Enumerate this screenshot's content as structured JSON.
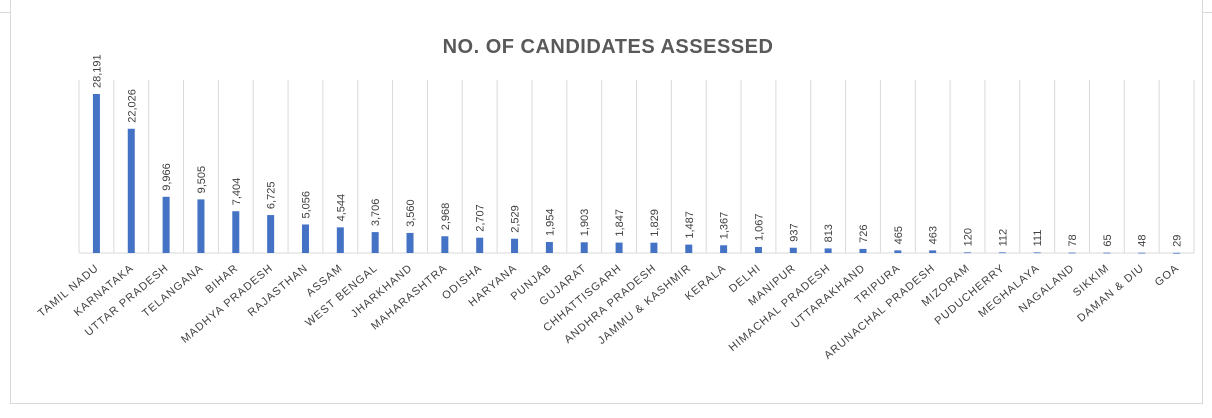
{
  "chart_data": {
    "type": "bar",
    "title": "NO. OF CANDIDATES ASSESSED",
    "categories": [
      "TAMIL NADU",
      "KARNATAKA",
      "UTTAR PRADESH",
      "TELANGANA",
      "BIHAR",
      "MADHYA PRADESH",
      "RAJASTHAN",
      "ASSAM",
      "WEST BENGAL",
      "JHARKHAND",
      "MAHARASHTRA",
      "ODISHA",
      "HARYANA",
      "PUNJAB",
      "GUJARAT",
      "CHHATTISGARH",
      "ANDHRA PRADESH",
      "JAMMU & KASHMIR",
      "KERALA",
      "DELHI",
      "MANIPUR",
      "HIMACHAL PRADESH",
      "UTTARAKHAND",
      "TRIPURA",
      "ARUNACHAL PRADESH",
      "MIZORAM",
      "PUDUCHERRY",
      "MEGHALAYA",
      "NAGALAND",
      "SIKKIM",
      "DAMAN & DIU",
      "GOA"
    ],
    "values": [
      28191,
      22026,
      9966,
      9505,
      7404,
      6725,
      5056,
      4544,
      3706,
      3560,
      2968,
      2707,
      2529,
      1954,
      1903,
      1847,
      1829,
      1487,
      1367,
      1067,
      937,
      813,
      726,
      465,
      463,
      120,
      112,
      111,
      78,
      65,
      48,
      29
    ],
    "value_labels": [
      "28,191",
      "22,026",
      "9,966",
      "9,505",
      "7,404",
      "6,725",
      "5,056",
      "4,544",
      "3,706",
      "3,560",
      "2,968",
      "2,707",
      "2,529",
      "1,954",
      "1,903",
      "1,847",
      "1,829",
      "1,487",
      "1,367",
      "1,067",
      "937",
      "813",
      "726",
      "465",
      "463",
      "120",
      "112",
      "111",
      "78",
      "65",
      "48",
      "29"
    ],
    "xlabel": "",
    "ylabel": "",
    "ylim": [
      0,
      28191
    ],
    "grid": "vertical",
    "legend": "none",
    "bar_color": "#4472c4",
    "grid_color": "#d9d9d9"
  }
}
